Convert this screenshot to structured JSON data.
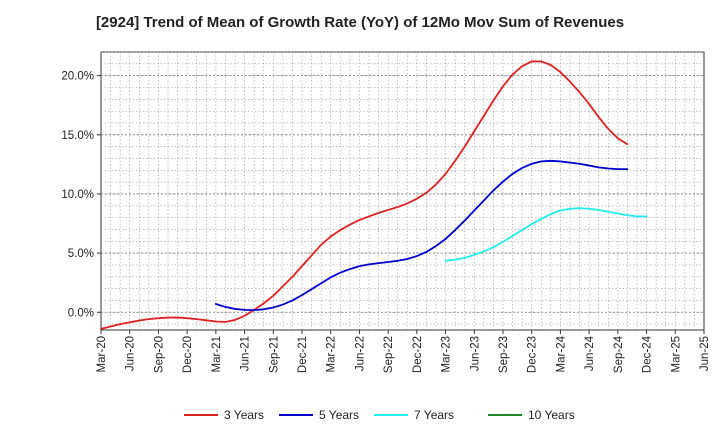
{
  "chart_data": {
    "type": "line",
    "title": "[2924]  Trend of Mean of Growth Rate (YoY) of 12Mo Mov Sum of Revenues",
    "xlabel": "",
    "ylabel": "",
    "ylim": [
      -1.5,
      22.0
    ],
    "yticks": [
      0.0,
      5.0,
      10.0,
      15.0,
      20.0
    ],
    "ytick_labels": [
      "0.0%",
      "5.0%",
      "10.0%",
      "15.0%",
      "20.0%"
    ],
    "x_start": "Mar-20",
    "x_end": "Jun-25",
    "xtick_labels": [
      "Mar-20",
      "Jun-20",
      "Sep-20",
      "Dec-20",
      "Mar-21",
      "Jun-21",
      "Sep-21",
      "Dec-21",
      "Mar-22",
      "Jun-22",
      "Sep-22",
      "Dec-22",
      "Mar-23",
      "Jun-23",
      "Sep-23",
      "Dec-23",
      "Mar-24",
      "Jun-24",
      "Sep-24",
      "Dec-24",
      "Mar-25",
      "Jun-25"
    ],
    "grid": true,
    "legend_position": "bottom",
    "series": [
      {
        "name": "3 Years",
        "color": "#dd2222",
        "start_index": 0,
        "values": [
          -1.4,
          -1.2,
          -1.0,
          -0.85,
          -0.7,
          -0.58,
          -0.5,
          -0.45,
          -0.45,
          -0.5,
          -0.58,
          -0.68,
          -0.78,
          -0.82,
          -0.65,
          -0.3,
          0.2,
          0.75,
          1.4,
          2.2,
          3.0,
          3.9,
          4.8,
          5.7,
          6.4,
          6.95,
          7.4,
          7.8,
          8.1,
          8.4,
          8.65,
          8.9,
          9.2,
          9.6,
          10.1,
          10.8,
          11.7,
          12.8,
          14.0,
          15.3,
          16.6,
          17.9,
          19.1,
          20.1,
          20.8,
          21.2,
          21.2,
          20.9,
          20.3,
          19.5,
          18.6,
          17.6,
          16.5,
          15.5,
          14.7,
          14.2
        ]
      },
      {
        "name": "5 Years",
        "color": "#0000cc",
        "start_index": 12,
        "values": [
          0.7,
          0.45,
          0.28,
          0.2,
          0.18,
          0.25,
          0.4,
          0.65,
          1.0,
          1.45,
          1.95,
          2.45,
          2.95,
          3.35,
          3.65,
          3.9,
          4.05,
          4.15,
          4.25,
          4.35,
          4.5,
          4.75,
          5.1,
          5.6,
          6.2,
          6.95,
          7.75,
          8.6,
          9.45,
          10.3,
          11.05,
          11.7,
          12.2,
          12.55,
          12.75,
          12.8,
          12.75,
          12.65,
          12.55,
          12.4,
          12.25,
          12.15,
          12.1,
          12.1
        ]
      },
      {
        "name": "7 Years",
        "color": "#22eeee",
        "start_index": 36,
        "values": [
          4.35,
          4.45,
          4.6,
          4.85,
          5.15,
          5.5,
          5.95,
          6.45,
          6.95,
          7.45,
          7.9,
          8.3,
          8.6,
          8.75,
          8.8,
          8.75,
          8.65,
          8.5,
          8.35,
          8.2,
          8.1,
          8.1
        ]
      },
      {
        "name": "10 Years",
        "color": "#228822",
        "start_index": 0,
        "values": []
      }
    ]
  }
}
